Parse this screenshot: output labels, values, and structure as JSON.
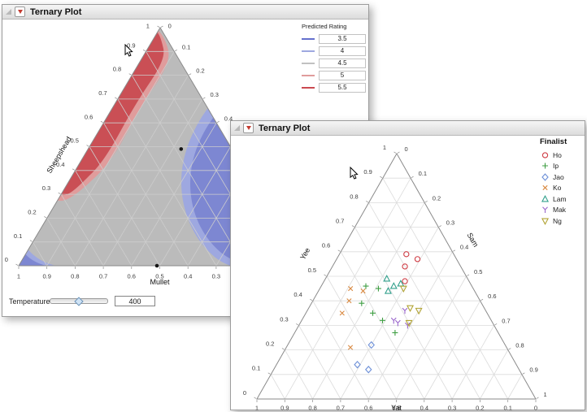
{
  "chart_data": [
    {
      "type": "ternary-contour",
      "window_title": "Ternary Plot",
      "axes": {
        "left": "Sheepshead",
        "bottom": "Mullet",
        "right": ""
      },
      "tick_labels": {
        "min": 0,
        "max": 1,
        "step": 0.1
      },
      "legend": {
        "title": "Predicted Rating",
        "items": [
          {
            "label": "3.5",
            "color": "#6470cd"
          },
          {
            "label": "4",
            "color": "#9ea8e0"
          },
          {
            "label": "4.5",
            "color": "#c1c1c1"
          },
          {
            "label": "5",
            "color": "#e09c9c"
          },
          {
            "label": "5.5",
            "color": "#cb4a50"
          }
        ]
      },
      "fill_colors": {
        "base_gray": "#bbbbbb",
        "blue_core": "#7d87d2",
        "blue_rim": "#9ea8e0",
        "red_core": "#ca4f55",
        "red_rim": "#e09c9c"
      },
      "point_order": "[bottom-axis weight, left-apex weight, right weight]",
      "design_points": [
        [
          0.18,
          0.49,
          0.33
        ],
        [
          0.51,
          0.0,
          0.49
        ],
        [
          0.0,
          0.49,
          0.51
        ]
      ],
      "slider": {
        "label": "Temperature",
        "value": "400"
      }
    },
    {
      "type": "ternary-scatter",
      "window_title": "Ternary Plot",
      "axes": {
        "left": "Yee",
        "bottom": "Yat",
        "right": "Sam"
      },
      "tick_labels": {
        "min": 0,
        "max": 1,
        "step": 0.1
      },
      "legend": {
        "title": "Finalist",
        "items": [
          {
            "label": "Ho",
            "marker": "circle",
            "color": "#cf3d45"
          },
          {
            "label": "Ip",
            "marker": "plus",
            "color": "#3f9e43"
          },
          {
            "label": "Jao",
            "marker": "diamond",
            "color": "#6c8fd8"
          },
          {
            "label": "Ko",
            "marker": "x",
            "color": "#d98a43"
          },
          {
            "label": "Lam",
            "marker": "triangle-up",
            "color": "#32a08c"
          },
          {
            "label": "Mak",
            "marker": "y",
            "color": "#9a66cc"
          },
          {
            "label": "Ng",
            "marker": "triangle-down",
            "color": "#b1a333"
          }
        ]
      },
      "point_order": "[Yat, Yee, Sam]",
      "series": [
        {
          "name": "Ho",
          "points": [
            [
              0.17,
              0.59,
              0.24
            ],
            [
              0.14,
              0.57,
              0.29
            ],
            [
              0.2,
              0.54,
              0.26
            ],
            [
              0.23,
              0.48,
              0.29
            ]
          ]
        },
        {
          "name": "Ip",
          "points": [
            [
              0.38,
              0.46,
              0.16
            ],
            [
              0.34,
              0.45,
              0.21
            ],
            [
              0.43,
              0.39,
              0.18
            ],
            [
              0.41,
              0.35,
              0.24
            ],
            [
              0.39,
              0.32,
              0.29
            ],
            [
              0.37,
              0.27,
              0.36
            ]
          ]
        },
        {
          "name": "Jao",
          "points": [
            [
              0.48,
              0.22,
              0.3
            ],
            [
              0.57,
              0.14,
              0.29
            ],
            [
              0.54,
              0.12,
              0.34
            ]
          ]
        },
        {
          "name": "Ko",
          "points": [
            [
              0.44,
              0.45,
              0.11
            ],
            [
              0.4,
              0.44,
              0.16
            ],
            [
              0.47,
              0.4,
              0.13
            ],
            [
              0.52,
              0.35,
              0.13
            ],
            [
              0.56,
              0.21,
              0.23
            ]
          ]
        },
        {
          "name": "Lam",
          "points": [
            [
              0.29,
              0.49,
              0.22
            ],
            [
              0.28,
              0.46,
              0.26
            ],
            [
              0.31,
              0.44,
              0.25
            ],
            [
              0.25,
              0.47,
              0.28
            ]
          ]
        },
        {
          "name": "Mak",
          "points": [
            [
              0.29,
              0.36,
              0.35
            ],
            [
              0.35,
              0.32,
              0.33
            ],
            [
              0.34,
              0.31,
              0.35
            ],
            [
              0.31,
              0.3,
              0.39
            ]
          ]
        },
        {
          "name": "Ng",
          "points": [
            [
              0.25,
              0.45,
              0.3
            ],
            [
              0.26,
              0.36,
              0.37
            ],
            [
              0.24,
              0.36,
              0.4
            ],
            [
              0.3,
              0.31,
              0.39
            ]
          ]
        }
      ]
    }
  ]
}
